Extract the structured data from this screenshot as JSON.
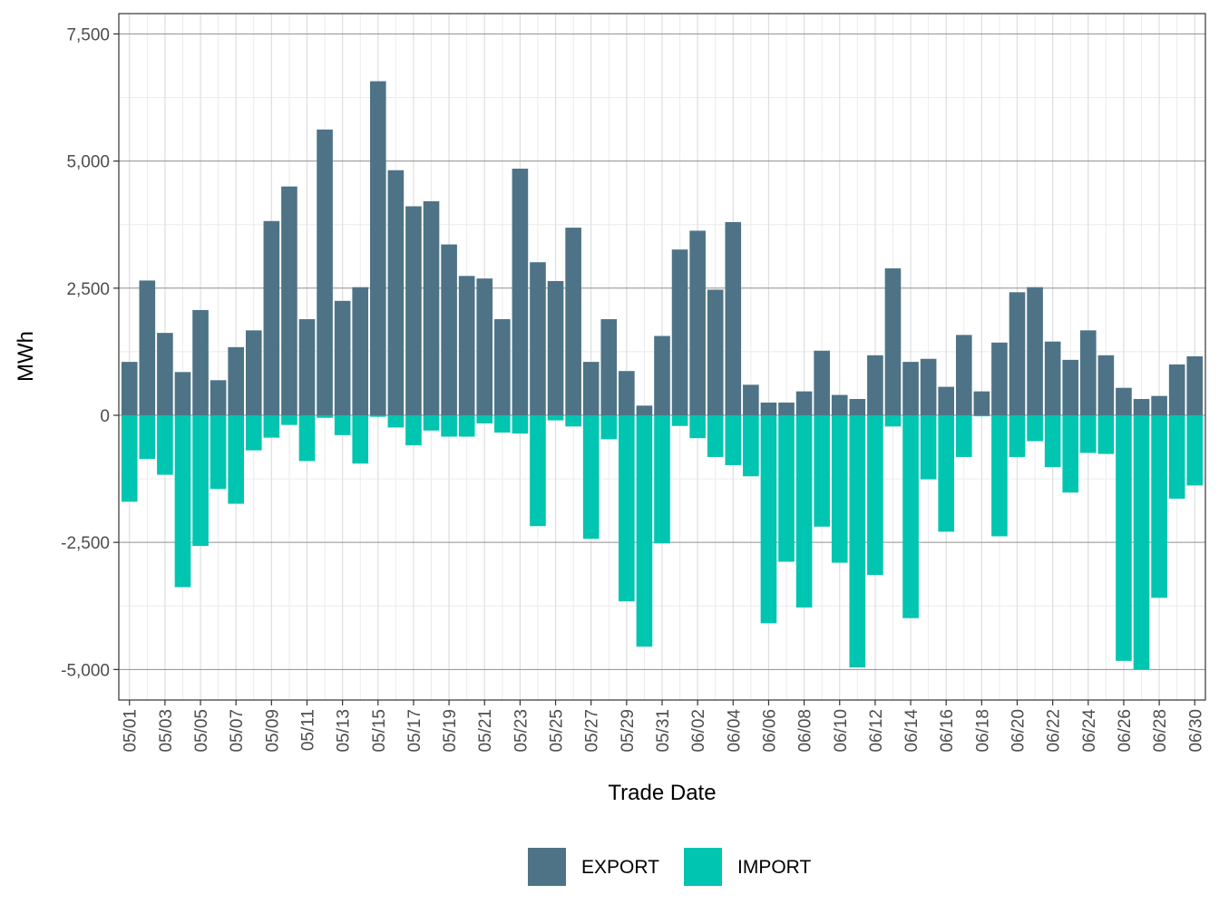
{
  "chart_data": {
    "type": "bar",
    "stacked": "diverging",
    "xlabel": "Trade Date",
    "ylabel": "MWh",
    "ylim": [
      -5600,
      7900
    ],
    "yticks": [
      -5000,
      -2500,
      0,
      2500,
      5000,
      7500
    ],
    "ytick_labels": [
      "-5,000",
      "-2,500",
      "0",
      "2,500",
      "5,000",
      "7,500"
    ],
    "grid": true,
    "legend_position": "bottom",
    "categories": [
      "05/01",
      "05/02",
      "05/03",
      "05/04",
      "05/05",
      "05/06",
      "05/07",
      "05/08",
      "05/09",
      "05/10",
      "05/11",
      "05/12",
      "05/13",
      "05/14",
      "05/15",
      "05/16",
      "05/17",
      "05/18",
      "05/19",
      "05/20",
      "05/21",
      "05/22",
      "05/23",
      "05/24",
      "05/25",
      "05/26",
      "05/27",
      "05/28",
      "05/29",
      "05/30",
      "05/31",
      "06/01",
      "06/02",
      "06/03",
      "06/04",
      "06/05",
      "06/06",
      "06/07",
      "06/08",
      "06/09",
      "06/10",
      "06/11",
      "06/12",
      "06/13",
      "06/14",
      "06/15",
      "06/16",
      "06/17",
      "06/18",
      "06/19",
      "06/20",
      "06/21",
      "06/22",
      "06/23",
      "06/24",
      "06/25",
      "06/26",
      "06/27",
      "06/28",
      "06/29",
      "06/30"
    ],
    "xtick_labels": [
      "05/01",
      "05/03",
      "05/05",
      "05/07",
      "05/09",
      "05/11",
      "05/13",
      "05/15",
      "05/17",
      "05/19",
      "05/21",
      "05/23",
      "05/25",
      "05/27",
      "05/29",
      "05/31",
      "06/02",
      "06/04",
      "06/06",
      "06/08",
      "06/10",
      "06/12",
      "06/14",
      "06/16",
      "06/18",
      "06/20",
      "06/22",
      "06/24",
      "06/26",
      "06/28",
      "06/30"
    ],
    "series": [
      {
        "name": "EXPORT",
        "color": "#4e7386",
        "values": [
          1050,
          2650,
          1620,
          850,
          2070,
          690,
          1340,
          1670,
          3820,
          4500,
          1890,
          5620,
          2250,
          2520,
          6570,
          4820,
          4110,
          4210,
          3360,
          2740,
          2690,
          1890,
          4850,
          3010,
          2640,
          3690,
          1050,
          1890,
          870,
          190,
          1560,
          3260,
          3630,
          2470,
          3800,
          600,
          250,
          250,
          470,
          1270,
          400,
          320,
          1180,
          2890,
          1050,
          1110,
          560,
          1580,
          470,
          1430,
          2420,
          2520,
          1450,
          1090,
          1670,
          1180,
          540,
          320,
          380,
          1000,
          1160
        ]
      },
      {
        "name": "IMPORT",
        "color": "#00c5b0",
        "values": [
          -1700,
          -860,
          -1170,
          -3380,
          -2570,
          -1450,
          -1740,
          -690,
          -440,
          -190,
          -900,
          -50,
          -390,
          -950,
          -30,
          -240,
          -590,
          -300,
          -420,
          -420,
          -160,
          -340,
          -360,
          -2180,
          -100,
          -220,
          -2430,
          -470,
          -3660,
          -4550,
          -2520,
          -210,
          -450,
          -820,
          -980,
          -1200,
          -4090,
          -2880,
          -3780,
          -2190,
          -2900,
          -4960,
          -3140,
          -220,
          -3990,
          -1260,
          -2290,
          -820,
          -20,
          -2380,
          -820,
          -510,
          -1020,
          -1520,
          -740,
          -760,
          -4830,
          -5000,
          -3590,
          -1640,
          -1380
        ]
      }
    ]
  }
}
